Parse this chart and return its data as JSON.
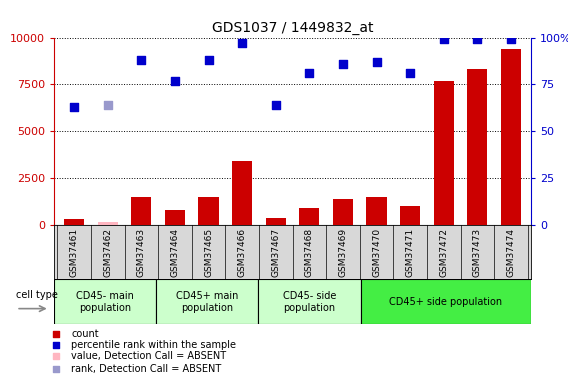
{
  "title": "GDS1037 / 1449832_at",
  "samples": [
    "GSM37461",
    "GSM37462",
    "GSM37463",
    "GSM37464",
    "GSM37465",
    "GSM37466",
    "GSM37467",
    "GSM37468",
    "GSM37469",
    "GSM37470",
    "GSM37471",
    "GSM37472",
    "GSM37473",
    "GSM37474"
  ],
  "counts": [
    300,
    150,
    1500,
    800,
    1500,
    3400,
    400,
    900,
    1400,
    1500,
    1000,
    7700,
    8300,
    9400
  ],
  "counts_absent": [
    false,
    true,
    false,
    false,
    false,
    false,
    false,
    false,
    false,
    false,
    false,
    false,
    false,
    false
  ],
  "ranks": [
    6300,
    6400,
    8800,
    7700,
    8800,
    9700,
    6400,
    8100,
    8600,
    8700,
    8100,
    9900,
    9900,
    9900
  ],
  "ranks_absent": [
    false,
    true,
    false,
    false,
    false,
    false,
    false,
    false,
    false,
    false,
    false,
    false,
    false,
    false
  ],
  "cell_type_groups": [
    {
      "label": "CD45- main\npopulation",
      "start": 0,
      "end": 2,
      "color": "#ccffcc"
    },
    {
      "label": "CD45+ main\npopulation",
      "start": 3,
      "end": 5,
      "color": "#ccffcc"
    },
    {
      "label": "CD45- side\npopulation",
      "start": 6,
      "end": 8,
      "color": "#ccffcc"
    },
    {
      "label": "CD45+ side population",
      "start": 9,
      "end": 13,
      "color": "#44ee44"
    }
  ],
  "ylim_left": [
    0,
    10000
  ],
  "ylim_right": [
    0,
    100
  ],
  "yticks_left": [
    0,
    2500,
    5000,
    7500,
    10000
  ],
  "yticks_right": [
    0,
    25,
    50,
    75,
    100
  ],
  "bar_color": "#CC0000",
  "bar_absent_color": "#FFB6C1",
  "rank_color": "#0000CC",
  "rank_absent_color": "#9999CC",
  "legend_items": [
    {
      "label": "count",
      "color": "#CC0000"
    },
    {
      "label": "percentile rank within the sample",
      "color": "#0000CC"
    },
    {
      "label": "value, Detection Call = ABSENT",
      "color": "#FFB6C1"
    },
    {
      "label": "rank, Detection Call = ABSENT",
      "color": "#9999CC"
    }
  ]
}
